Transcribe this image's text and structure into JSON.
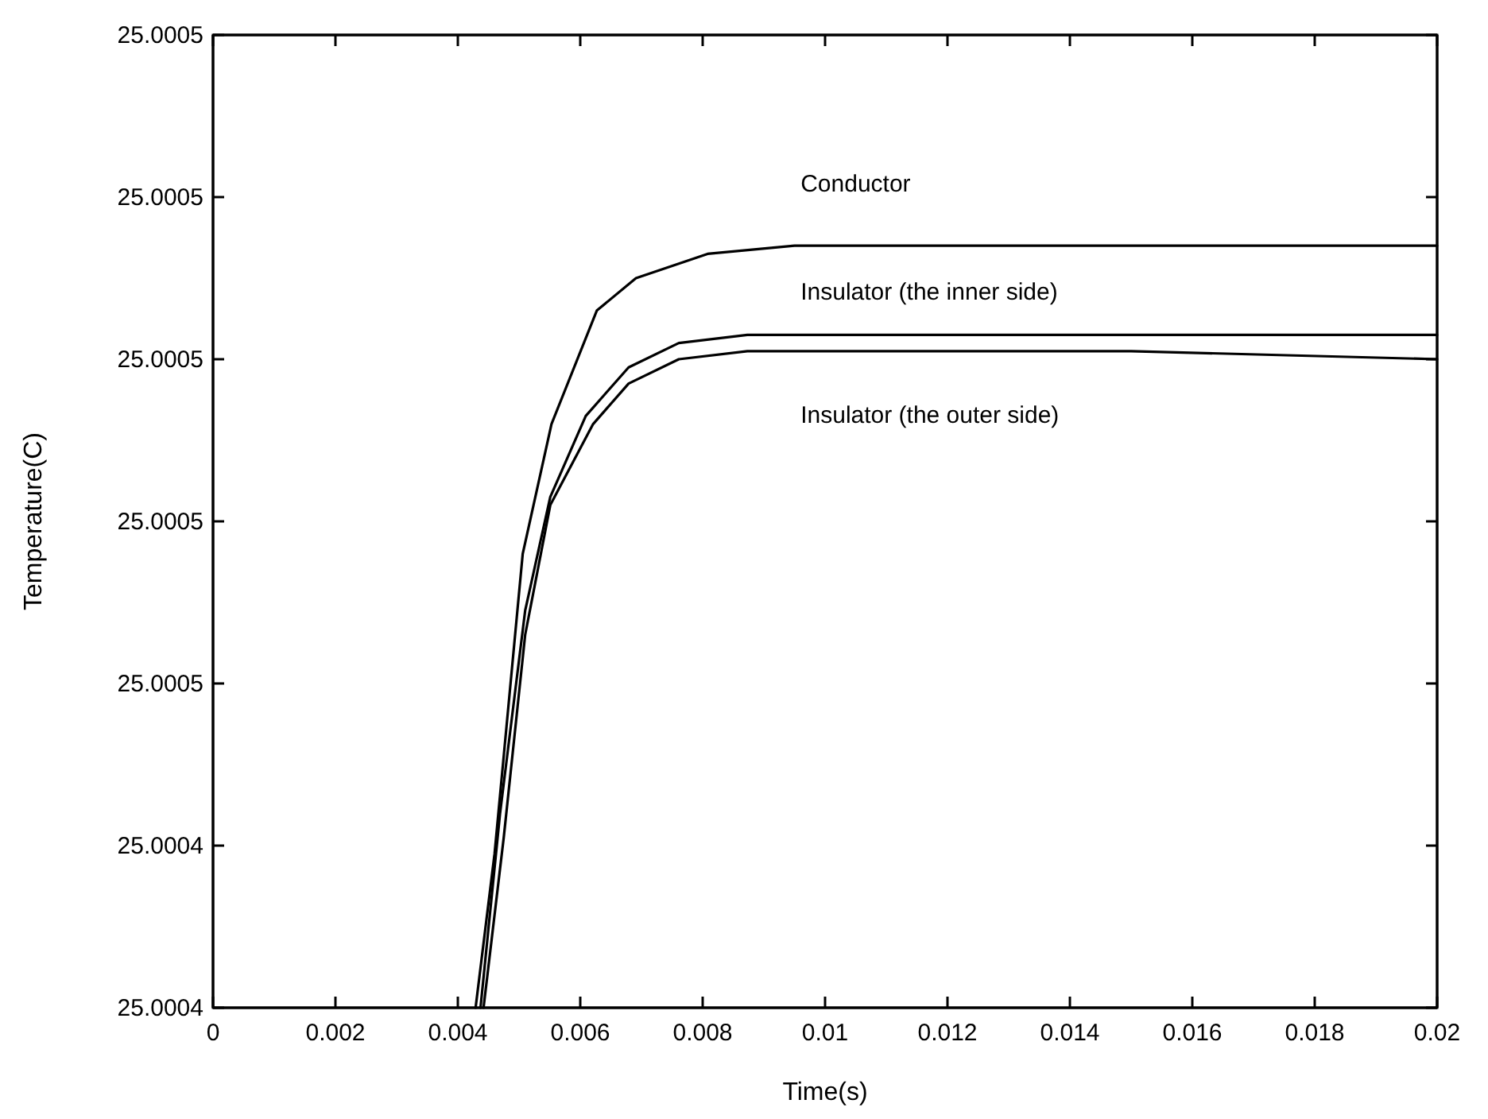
{
  "chart_data": {
    "type": "line",
    "xlabel": "Time(s)",
    "ylabel": "Temperature(C)",
    "xlim": [
      0,
      0.02
    ],
    "xticks": [
      0,
      0.002,
      0.004,
      0.006,
      0.008,
      0.01,
      0.012,
      0.014,
      0.016,
      0.018,
      0.02
    ],
    "ylim": [
      25.00041,
      25.00053
    ],
    "yticks": [
      {
        "value": 25.00041,
        "label": "25.0004"
      },
      {
        "value": 25.00043,
        "label": "25.0004"
      },
      {
        "value": 25.00045,
        "label": "25.0005"
      },
      {
        "value": 25.00047,
        "label": "25.0005"
      },
      {
        "value": 25.00049,
        "label": "25.0005"
      },
      {
        "value": 25.00051,
        "label": "25.0005"
      },
      {
        "value": 25.00053,
        "label": "25.0005"
      }
    ],
    "grid": false,
    "legend": false,
    "marker": "none",
    "line_style": "solid",
    "series": [
      {
        "name": "Conductor",
        "color": "#000000",
        "x": [
          0.00429,
          0.0046,
          0.00506,
          0.00553,
          0.00627,
          0.00691,
          0.00808,
          0.0095,
          0.012,
          0.016,
          0.02
        ],
        "values": [
          25.00041,
          25.000429,
          25.000466,
          25.000482,
          25.000496,
          25.0005,
          25.000503,
          25.000504,
          25.000504,
          25.000504,
          25.000504
        ]
      },
      {
        "name": "Insulator (the inner side)",
        "color": "#000000",
        "x": [
          0.00437,
          0.00469,
          0.0051,
          0.00551,
          0.00609,
          0.00679,
          0.00761,
          0.00873,
          0.011,
          0.015,
          0.02
        ],
        "values": [
          25.00041,
          25.000434,
          25.000459,
          25.000473,
          25.000483,
          25.000489,
          25.000492,
          25.000493,
          25.000493,
          25.000493,
          25.000493
        ]
      },
      {
        "name": "Insulator (the outer side)",
        "color": "#000000",
        "x": [
          0.00442,
          0.00475,
          0.0051,
          0.00551,
          0.00621,
          0.00679,
          0.00761,
          0.00873,
          0.011,
          0.015,
          0.02
        ],
        "values": [
          25.00041,
          25.000431,
          25.000456,
          25.000472,
          25.000482,
          25.000487,
          25.00049,
          25.000491,
          25.000491,
          25.000491,
          25.00049
        ]
      }
    ]
  }
}
